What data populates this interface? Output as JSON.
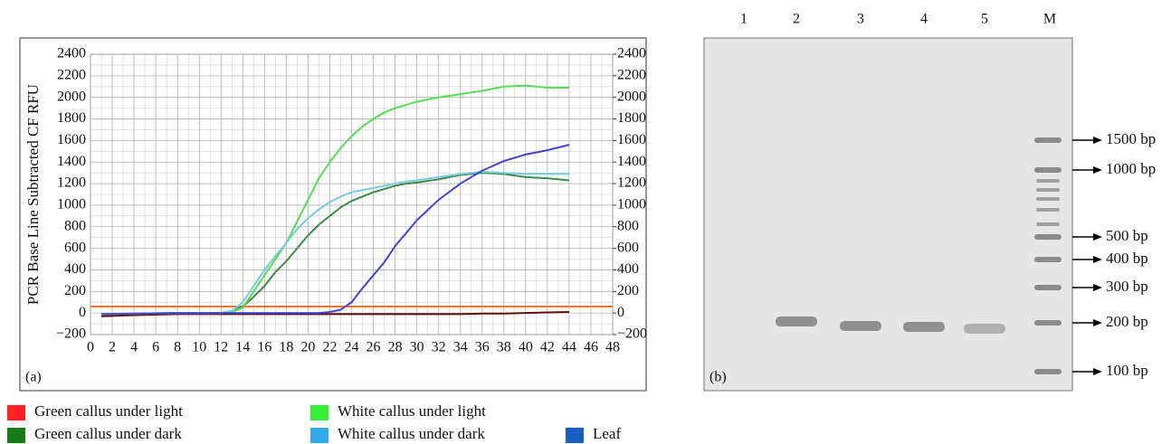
{
  "chart_data": {
    "type": "line",
    "panel_label": "(a)",
    "ylabel": "PCR Base Line Subtracted CF RFU",
    "x": [
      1,
      4,
      8,
      12,
      13,
      14,
      15,
      16,
      17,
      18,
      19,
      20,
      21,
      22,
      23,
      24,
      25,
      26,
      27,
      28,
      29,
      30,
      32,
      34,
      36,
      38,
      40,
      42,
      44
    ],
    "series": [
      {
        "name": "Green callus under light",
        "color": "#ff2020",
        "line_color": "#5a1010",
        "values": [
          -30,
          -20,
          -10,
          -10,
          -10,
          -10,
          -10,
          -10,
          -10,
          -10,
          -10,
          -10,
          -10,
          -10,
          -10,
          -10,
          -10,
          -10,
          -10,
          -10,
          -10,
          -10,
          -10,
          -10,
          -5,
          -5,
          0,
          5,
          10
        ]
      },
      {
        "name": "Green callus under dark",
        "color": "#1a7a1a",
        "line_color": "#3a8a4a",
        "values": [
          -10,
          -5,
          0,
          0,
          20,
          60,
          150,
          250,
          380,
          480,
          600,
          720,
          820,
          900,
          980,
          1040,
          1080,
          1120,
          1150,
          1180,
          1200,
          1210,
          1240,
          1280,
          1300,
          1290,
          1260,
          1250,
          1230
        ]
      },
      {
        "name": "White callus under light",
        "color": "#33ee33",
        "line_color": "#55dd55",
        "values": [
          -10,
          -5,
          0,
          0,
          10,
          50,
          200,
          350,
          500,
          650,
          850,
          1050,
          1250,
          1400,
          1530,
          1640,
          1730,
          1800,
          1860,
          1900,
          1930,
          1960,
          2000,
          2030,
          2060,
          2100,
          2110,
          2090,
          2090
        ]
      },
      {
        "name": "White callus under dark",
        "color": "#33aaee",
        "line_color": "#77ccdd",
        "values": [
          -10,
          -5,
          0,
          0,
          20,
          100,
          250,
          400,
          530,
          650,
          780,
          880,
          960,
          1030,
          1080,
          1120,
          1140,
          1160,
          1180,
          1200,
          1220,
          1230,
          1260,
          1290,
          1310,
          1300,
          1290,
          1290,
          1290
        ]
      },
      {
        "name": "Leaf",
        "color": "#1560c0",
        "line_color": "#4444cc",
        "values": [
          -10,
          -5,
          0,
          0,
          0,
          0,
          0,
          0,
          0,
          0,
          0,
          0,
          0,
          10,
          30,
          100,
          230,
          350,
          470,
          620,
          740,
          860,
          1050,
          1200,
          1320,
          1410,
          1470,
          1510,
          1560
        ]
      }
    ],
    "threshold": 60,
    "threshold_color": "#f07030",
    "xlim": [
      0,
      48
    ],
    "xticks": [
      0,
      2,
      4,
      6,
      8,
      10,
      12,
      14,
      16,
      18,
      20,
      22,
      24,
      26,
      28,
      30,
      32,
      34,
      36,
      38,
      40,
      42,
      44,
      46,
      48
    ],
    "ylim": [
      -200,
      2400
    ],
    "yticks": [
      {
        "value": -200,
        "label": "−200"
      },
      0,
      200,
      400,
      600,
      800,
      1000,
      1200,
      1400,
      1600,
      1800,
      2000,
      2200,
      2400
    ],
    "y2lim": [
      -200,
      2400
    ],
    "y2ticks": [
      {
        "value": -200,
        "label": "−200"
      },
      0,
      200,
      400,
      600,
      800,
      1000,
      1200,
      1400,
      1600,
      1800,
      2000,
      2200,
      2400
    ],
    "grid": true
  },
  "gel": {
    "panel_label": "(b)",
    "lanes": [
      "1",
      "2",
      "3",
      "4",
      "5",
      "M"
    ],
    "markers": [
      "1500 bp",
      "1000 bp",
      "500 bp",
      "400 bp",
      "300 bp",
      "200 bp",
      "100 bp"
    ]
  }
}
